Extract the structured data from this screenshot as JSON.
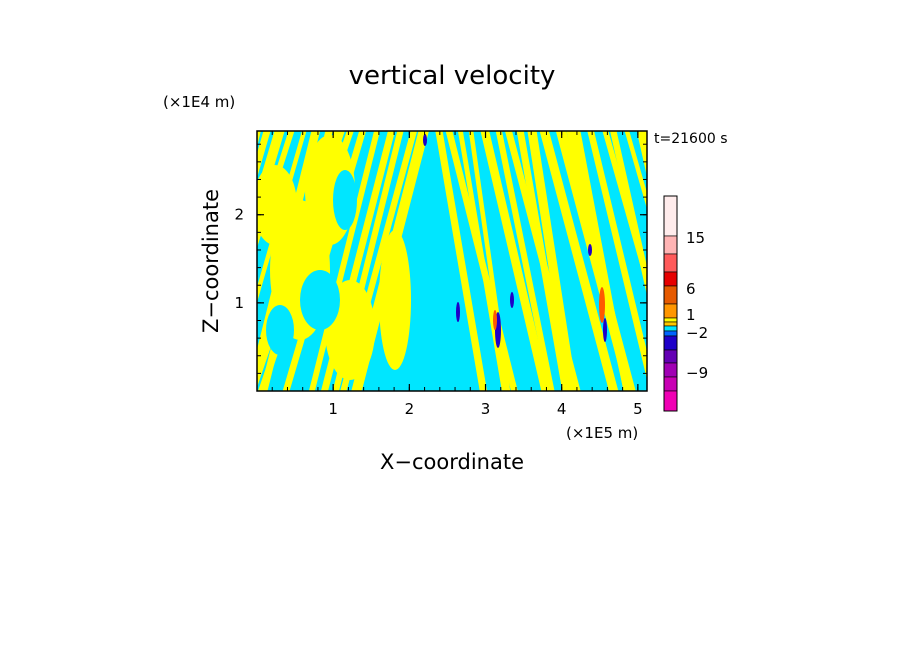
{
  "chart_data": {
    "type": "heatmap",
    "title": "vertical velocity",
    "xlabel": "X−coordinate",
    "ylabel": "Z−coordinate",
    "x_unit": "(×1E5 m)",
    "y_unit": "(×1E4 m)",
    "time_label": "t=21600 s",
    "xlim": [
      0,
      5.12
    ],
    "ylim": [
      0,
      2.95
    ],
    "x_ticks": [
      "1",
      "2",
      "3",
      "4",
      "5"
    ],
    "y_ticks": [
      "1",
      "2"
    ],
    "colorbar": {
      "labels": [
        "15",
        "6",
        "1",
        "−2",
        "−9"
      ],
      "colors_top_to_bottom": [
        "#ffecec",
        "#ffb4b4",
        "#ff5a5a",
        "#e60000",
        "#e65a00",
        "#ff9600",
        "#ffff00",
        "#ffc800",
        "#00e6ff",
        "#0064ff",
        "#1e00c8",
        "#6400b4",
        "#a000b4",
        "#c800b4",
        "#f000b4"
      ]
    },
    "dominant_colors": {
      "positive_weak": "#ffff00",
      "negative_weak": "#00e6ff",
      "strong_positive": "#ff5a00",
      "strong_negative": "#1e00c8"
    }
  }
}
